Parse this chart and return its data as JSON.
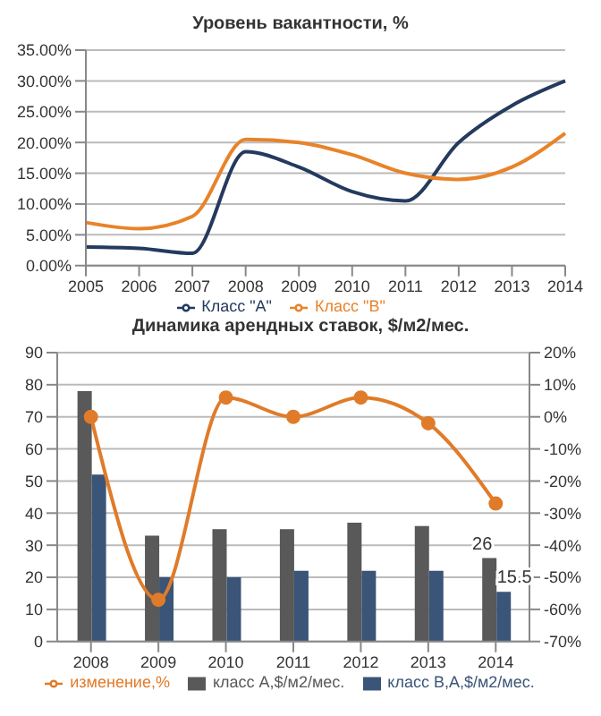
{
  "chart_data": [
    {
      "type": "line",
      "title": "Уровень вакантности, %",
      "categories": [
        "2005",
        "2006",
        "2007",
        "2008",
        "2009",
        "2010",
        "2011",
        "2012",
        "2013",
        "2014"
      ],
      "series": [
        {
          "name": "Класс \"А\"",
          "color": "#243a5e",
          "values": [
            3,
            2.8,
            2,
            18.5,
            16,
            12,
            10.5,
            20,
            26,
            30
          ]
        },
        {
          "name": "Класс \"В\"",
          "color": "#e8832a",
          "values": [
            7,
            6,
            8,
            20.5,
            20,
            18,
            15,
            14,
            16,
            21.5
          ]
        }
      ],
      "ylim": [
        0,
        35
      ],
      "yticks": [
        {
          "value": 0,
          "label": "0.00%"
        },
        {
          "value": 5,
          "label": "5.00%"
        },
        {
          "value": 10,
          "label": "10.00%"
        },
        {
          "value": 15,
          "label": "15.00%"
        },
        {
          "value": 20,
          "label": "20.00%"
        },
        {
          "value": 25,
          "label": "25.00%"
        },
        {
          "value": 30,
          "label": "30.00%"
        },
        {
          "value": 35,
          "label": "35.00%"
        }
      ],
      "grid": "y",
      "legend": "bottom"
    },
    {
      "type": "bar",
      "title": "Динамика арендных ставок, $/м2/мес.",
      "categories": [
        "2008",
        "2009",
        "2010",
        "2011",
        "2012",
        "2013",
        "2014"
      ],
      "series": [
        {
          "name": "класс А,$/м2/мес.",
          "color": "#595959",
          "values": [
            78,
            33,
            35,
            35,
            37,
            36,
            26
          ],
          "value_labels": [
            null,
            null,
            null,
            null,
            null,
            null,
            "26"
          ]
        },
        {
          "name": "класс В,А,$/м2/мес.",
          "color": "#3a5578",
          "values": [
            52,
            20,
            20,
            22,
            22,
            22,
            15.5
          ],
          "value_labels": [
            null,
            null,
            null,
            null,
            null,
            null,
            "15.5"
          ]
        },
        {
          "name": "изменение,%",
          "type": "line",
          "axis": "y2",
          "marker": "circle",
          "color": "#e07b29",
          "values": [
            0,
            -57,
            6,
            0,
            6,
            -2,
            -27
          ]
        }
      ],
      "ylim": [
        0,
        90
      ],
      "yticks": [
        0,
        10,
        20,
        30,
        40,
        50,
        60,
        70,
        80,
        90
      ],
      "y2lim": [
        -70,
        20
      ],
      "y2ticks": [
        {
          "value": -70,
          "label": "-70%"
        },
        {
          "value": -60,
          "label": "-60%"
        },
        {
          "value": -50,
          "label": "-50%"
        },
        {
          "value": -40,
          "label": "-40%"
        },
        {
          "value": -30,
          "label": "-30%"
        },
        {
          "value": -20,
          "label": "-20%"
        },
        {
          "value": -10,
          "label": "-10%"
        },
        {
          "value": 0,
          "label": "0%"
        },
        {
          "value": 10,
          "label": "10%"
        },
        {
          "value": 20,
          "label": "20%"
        }
      ],
      "grid": "y",
      "legend": "bottom"
    }
  ]
}
